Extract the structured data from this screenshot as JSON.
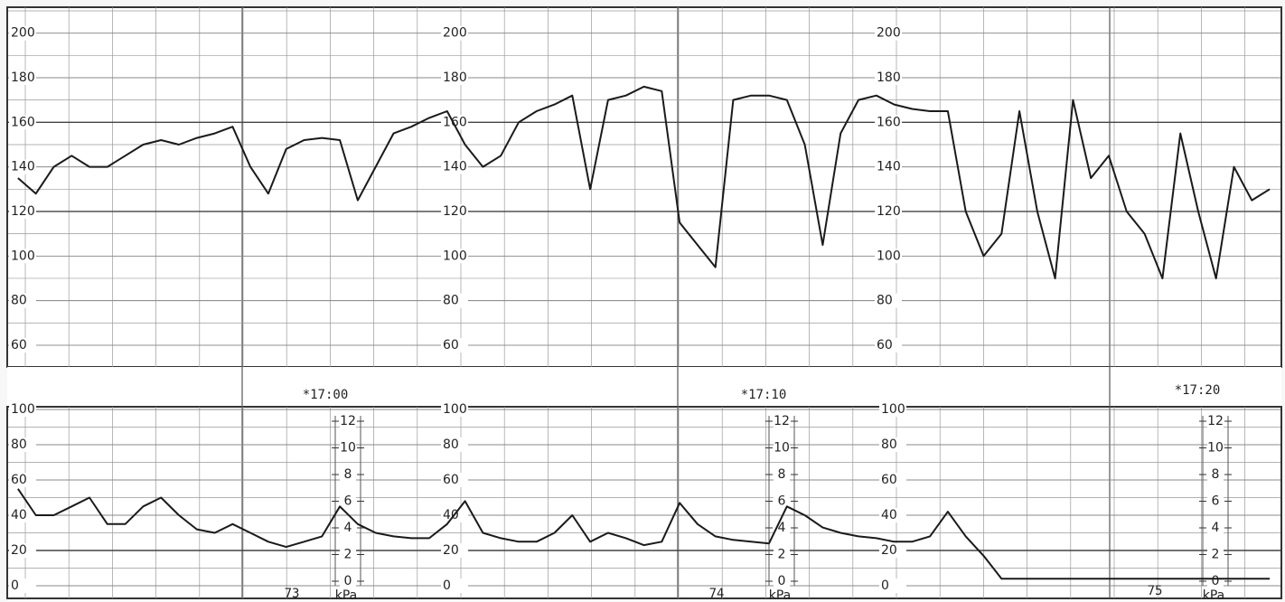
{
  "chart_data": [
    {
      "type": "line",
      "categories": [
        null,
        null,
        null,
        null,
        null,
        null,
        null,
        null,
        null,
        null,
        null,
        null,
        null,
        null,
        null,
        null,
        null,
        null,
        null,
        null,
        null,
        null,
        null,
        null,
        null,
        null,
        null,
        null,
        null,
        null,
        null,
        null,
        null,
        null,
        null,
        null,
        null,
        null,
        null,
        null,
        null,
        null,
        null,
        null,
        null,
        null,
        null,
        null,
        null,
        null,
        null,
        null,
        null,
        null,
        null,
        null,
        null,
        null,
        null,
        null,
        null,
        null,
        null,
        null,
        null,
        null,
        null,
        null,
        null,
        null,
        null
      ],
      "values": [
        135,
        128,
        140,
        145,
        140,
        140,
        145,
        150,
        152,
        150,
        153,
        155,
        158,
        140,
        128,
        148,
        152,
        153,
        152,
        125,
        140,
        155,
        158,
        162,
        165,
        150,
        140,
        145,
        160,
        165,
        168,
        172,
        130,
        170,
        172,
        176,
        174,
        115,
        105,
        95,
        170,
        172,
        172,
        170,
        150,
        105,
        155,
        170,
        172,
        168,
        166,
        165,
        165,
        120,
        100,
        110,
        165,
        120,
        90,
        170,
        135,
        145,
        120,
        110,
        90,
        155,
        120,
        90,
        140,
        125,
        130
      ],
      "color": "#1a1a1a",
      "ylim": [
        50,
        210
      ],
      "yticks": [
        60,
        80,
        100,
        120,
        140,
        160,
        180,
        200
      ],
      "grid": true
    },
    {
      "type": "line",
      "categories": [
        null,
        null,
        null,
        null,
        null,
        null,
        null,
        null,
        null,
        null,
        null,
        null,
        null,
        null,
        null,
        null,
        null,
        null,
        null,
        null,
        null,
        null,
        null,
        null,
        null,
        null,
        null,
        null,
        null,
        null,
        null,
        null,
        null,
        null,
        null,
        null,
        null,
        null,
        null,
        null,
        null,
        null,
        null,
        null,
        null,
        null,
        null,
        null,
        null,
        null,
        null,
        null,
        null,
        null,
        null,
        null,
        null,
        null,
        null,
        null,
        null,
        null,
        null,
        null,
        null,
        null,
        null,
        null,
        null,
        null,
        null
      ],
      "values": [
        55,
        40,
        40,
        45,
        50,
        35,
        35,
        45,
        50,
        40,
        32,
        30,
        35,
        30,
        25,
        22,
        25,
        28,
        45,
        35,
        30,
        28,
        27,
        27,
        35,
        48,
        30,
        27,
        25,
        25,
        30,
        40,
        25,
        30,
        27,
        23,
        25,
        47,
        35,
        28,
        26,
        25,
        24,
        45,
        40,
        33,
        30,
        28,
        27,
        25,
        25,
        28,
        42,
        28,
        17,
        4,
        4,
        4,
        4,
        4,
        4,
        4,
        4,
        4,
        4,
        4,
        4,
        4,
        4,
        4,
        4
      ],
      "color": "#1a1a1a",
      "ylim": [
        0,
        100
      ],
      "yticks": [
        0,
        20,
        40,
        60,
        80,
        100
      ],
      "y2lim": [
        0,
        12
      ],
      "y2ticks": [
        0,
        2,
        4,
        6,
        8,
        10,
        12
      ],
      "y2label": "kPa",
      "annotations": [
        "*17:00",
        "*17:10",
        "*17:20",
        "73",
        "74",
        "75"
      ],
      "grid": true
    }
  ]
}
